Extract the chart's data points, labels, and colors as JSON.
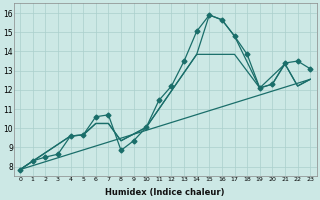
{
  "xlabel": "Humidex (Indice chaleur)",
  "bg_color": "#cce8e5",
  "grid_color": "#aacfcc",
  "line_color": "#1a6e6a",
  "xlim": [
    -0.5,
    23.5
  ],
  "ylim": [
    7.5,
    16.5
  ],
  "xticks": [
    0,
    1,
    2,
    3,
    4,
    5,
    6,
    7,
    8,
    9,
    10,
    11,
    12,
    13,
    14,
    15,
    16,
    17,
    18,
    19,
    20,
    21,
    22,
    23
  ],
  "yticks": [
    8,
    9,
    10,
    11,
    12,
    13,
    14,
    15,
    16
  ],
  "line1_x": [
    0,
    1,
    2,
    3,
    4,
    5,
    6,
    7,
    8,
    9,
    10,
    11,
    12,
    13,
    14,
    15,
    16,
    17,
    18,
    19,
    20,
    21,
    22,
    23
  ],
  "line1_y": [
    7.85,
    8.3,
    8.5,
    8.65,
    9.6,
    9.65,
    10.6,
    10.7,
    8.85,
    9.35,
    10.05,
    11.45,
    12.2,
    13.5,
    15.05,
    15.9,
    15.65,
    14.8,
    13.85,
    12.1,
    12.3,
    13.4,
    13.5,
    13.1
  ],
  "line2_x": [
    0,
    23
  ],
  "line2_y": [
    7.85,
    12.55
  ],
  "line3_x": [
    0,
    4,
    5,
    6,
    7,
    8,
    10,
    14,
    17,
    19,
    20,
    21,
    22,
    23
  ],
  "line3_y": [
    7.85,
    9.6,
    9.65,
    10.25,
    10.25,
    9.35,
    10.05,
    13.85,
    13.85,
    12.1,
    12.3,
    13.35,
    12.2,
    12.55
  ],
  "line4_x": [
    0,
    4,
    5,
    6,
    7,
    8,
    10,
    14,
    15,
    16,
    17,
    19,
    21,
    22,
    23
  ],
  "line4_y": [
    7.85,
    9.6,
    9.65,
    10.25,
    10.25,
    9.35,
    10.05,
    13.85,
    15.9,
    15.65,
    14.8,
    12.1,
    13.35,
    12.2,
    12.55
  ]
}
